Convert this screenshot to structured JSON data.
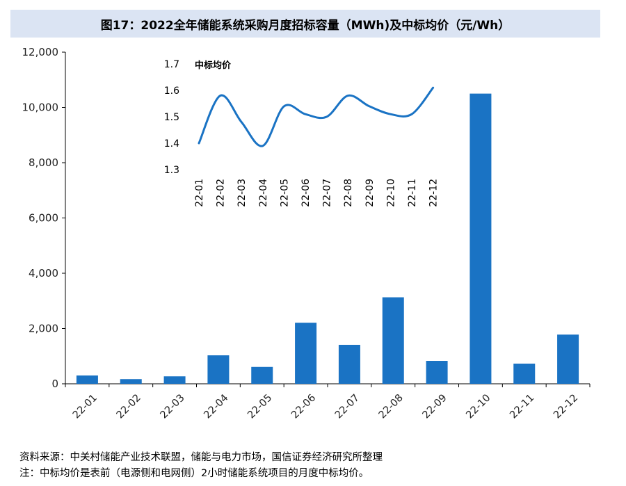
{
  "title": "图17：2022全年储能系统采购月度招标容量（MWh)及中标均价（元/Wh）",
  "chart_data": [
    {
      "type": "bar",
      "categories": [
        "22-01",
        "22-02",
        "22-03",
        "22-04",
        "22-05",
        "22-06",
        "22-07",
        "22-08",
        "22-09",
        "22-10",
        "22-11",
        "22-12"
      ],
      "values": [
        300,
        170,
        270,
        1030,
        610,
        2210,
        1410,
        3130,
        830,
        10500,
        730,
        1780
      ],
      "ylim": [
        0,
        12000
      ],
      "yticks": [
        0,
        2000,
        4000,
        6000,
        8000,
        10000,
        12000
      ],
      "ytick_labels": [
        "0",
        "2,000",
        "4,000",
        "6,000",
        "8,000",
        "10,000",
        "12,000"
      ],
      "color": "#1a73c4",
      "grid": false
    },
    {
      "type": "line",
      "label": "中标均价",
      "categories": [
        "22-01",
        "22-02",
        "22-03",
        "22-04",
        "22-05",
        "22-06",
        "22-07",
        "22-08",
        "22-09",
        "22-10",
        "22-11",
        "22-12"
      ],
      "values": [
        1.4,
        1.58,
        1.48,
        1.39,
        1.54,
        1.51,
        1.5,
        1.58,
        1.54,
        1.51,
        1.51,
        1.61
      ],
      "ylim": [
        1.3,
        1.7
      ],
      "yticks": [
        1.3,
        1.4,
        1.5,
        1.6,
        1.7
      ],
      "ytick_labels": [
        "1.3",
        "1.4",
        "1.5",
        "1.6",
        "1.7"
      ],
      "color": "#1a73c4"
    }
  ],
  "notes": {
    "source": "资料来源：中关村储能产业技术联盟，储能与电力市场，国信证券经济研究所整理",
    "note": "注：中标均价是表前（电源侧和电网侧）2小时储能系统项目的月度中标均价。"
  }
}
